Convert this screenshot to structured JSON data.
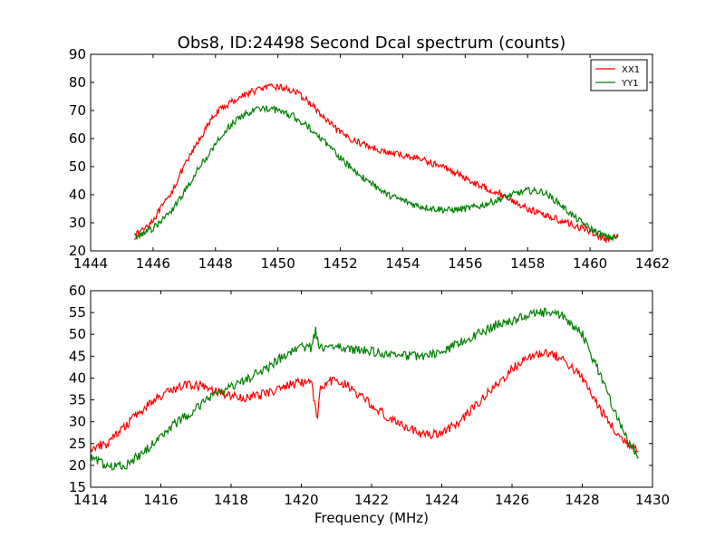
{
  "figure": {
    "title": "Obs8, ID:24498 Second Dcal spectrum (counts)",
    "xlabel": "Frequency (MHz)"
  },
  "colors": {
    "XX1": "#ff0000",
    "YY1": "#008000"
  },
  "chart_data": [
    {
      "type": "line",
      "title": "Obs8, ID:24498 Second Dcal spectrum (counts)",
      "xlabel": "",
      "ylabel": "",
      "xlim": [
        1444,
        1462
      ],
      "ylim": [
        20,
        90
      ],
      "xticks": [
        1444,
        1446,
        1448,
        1450,
        1452,
        1454,
        1456,
        1458,
        1460,
        1462
      ],
      "yticks": [
        20,
        30,
        40,
        50,
        60,
        70,
        80,
        90
      ],
      "grid": false,
      "legend": "top-right",
      "noise_amplitude": 1.2,
      "series": [
        {
          "name": "XX1",
          "color": "#ff0000",
          "points": [
            [
              1445.4,
              25
            ],
            [
              1446,
              31
            ],
            [
              1446.5,
              39
            ],
            [
              1447,
              50
            ],
            [
              1447.5,
              60
            ],
            [
              1448,
              69
            ],
            [
              1448.5,
              73
            ],
            [
              1449,
              76
            ],
            [
              1449.5,
              78
            ],
            [
              1450,
              78.5
            ],
            [
              1450.5,
              77
            ],
            [
              1451,
              73
            ],
            [
              1451.5,
              67
            ],
            [
              1452,
              62
            ],
            [
              1452.5,
              59
            ],
            [
              1453,
              57
            ],
            [
              1453.5,
              55
            ],
            [
              1454,
              54
            ],
            [
              1454.5,
              53
            ],
            [
              1455,
              51
            ],
            [
              1455.5,
              49
            ],
            [
              1456,
              46
            ],
            [
              1456.5,
              43
            ],
            [
              1457,
              41
            ],
            [
              1457.5,
              38
            ],
            [
              1458,
              35
            ],
            [
              1458.5,
              33
            ],
            [
              1459,
              31
            ],
            [
              1459.5,
              29
            ],
            [
              1460,
              27
            ],
            [
              1460.5,
              24
            ],
            [
              1460.9,
              25
            ]
          ]
        },
        {
          "name": "YY1",
          "color": "#008000",
          "points": [
            [
              1445.4,
              25
            ],
            [
              1446,
              28
            ],
            [
              1446.5,
              33
            ],
            [
              1447,
              41
            ],
            [
              1447.5,
              50
            ],
            [
              1448,
              58
            ],
            [
              1448.5,
              65
            ],
            [
              1449,
              69
            ],
            [
              1449.5,
              71
            ],
            [
              1450,
              70
            ],
            [
              1450.5,
              68
            ],
            [
              1451,
              64
            ],
            [
              1451.5,
              59
            ],
            [
              1452,
              53
            ],
            [
              1452.5,
              48
            ],
            [
              1453,
              44
            ],
            [
              1453.5,
              40
            ],
            [
              1454,
              38
            ],
            [
              1454.5,
              36
            ],
            [
              1455,
              35
            ],
            [
              1455.5,
              34.5
            ],
            [
              1456,
              35
            ],
            [
              1456.5,
              36
            ],
            [
              1457,
              38
            ],
            [
              1457.5,
              40
            ],
            [
              1458,
              41.5
            ],
            [
              1458.5,
              41
            ],
            [
              1459,
              37
            ],
            [
              1459.5,
              32
            ],
            [
              1460,
              28
            ],
            [
              1460.5,
              25
            ],
            [
              1460.9,
              24.5
            ]
          ]
        }
      ]
    },
    {
      "type": "line",
      "title": "",
      "xlabel": "Frequency (MHz)",
      "ylabel": "",
      "xlim": [
        1414,
        1430
      ],
      "ylim": [
        15,
        60
      ],
      "xticks": [
        1414,
        1416,
        1418,
        1420,
        1422,
        1424,
        1426,
        1428,
        1430
      ],
      "yticks": [
        15,
        20,
        25,
        30,
        35,
        40,
        45,
        50,
        55,
        60
      ],
      "grid": false,
      "legend": "none",
      "noise_amplitude": 1.1,
      "series": [
        {
          "name": "XX1",
          "color": "#ff0000",
          "points": [
            [
              1414,
              24
            ],
            [
              1414.5,
              25
            ],
            [
              1415,
              29
            ],
            [
              1415.5,
              33
            ],
            [
              1416,
              36
            ],
            [
              1416.5,
              38
            ],
            [
              1417,
              38.5
            ],
            [
              1417.5,
              37
            ],
            [
              1418,
              36
            ],
            [
              1418.5,
              35.5
            ],
            [
              1419,
              36.5
            ],
            [
              1419.5,
              38
            ],
            [
              1420,
              39
            ],
            [
              1420.3,
              38.5
            ],
            [
              1420.45,
              30
            ],
            [
              1420.55,
              38
            ],
            [
              1421,
              40
            ],
            [
              1421.5,
              37
            ],
            [
              1422,
              34
            ],
            [
              1422.5,
              31
            ],
            [
              1423,
              28.5
            ],
            [
              1423.5,
              27
            ],
            [
              1424,
              27.5
            ],
            [
              1424.5,
              30
            ],
            [
              1425,
              34
            ],
            [
              1425.5,
              38
            ],
            [
              1426,
              42
            ],
            [
              1426.5,
              45
            ],
            [
              1427,
              46
            ],
            [
              1427.5,
              44
            ],
            [
              1428,
              40
            ],
            [
              1428.5,
              33
            ],
            [
              1429,
              27
            ],
            [
              1429.3,
              25
            ],
            [
              1429.6,
              24
            ]
          ]
        },
        {
          "name": "YY1",
          "color": "#008000",
          "points": [
            [
              1414,
              21.5
            ],
            [
              1414.5,
              20
            ],
            [
              1415,
              20
            ],
            [
              1415.5,
              23
            ],
            [
              1416,
              27
            ],
            [
              1416.5,
              30
            ],
            [
              1417,
              33
            ],
            [
              1417.5,
              36
            ],
            [
              1418,
              38
            ],
            [
              1418.5,
              40
            ],
            [
              1419,
              42
            ],
            [
              1419.5,
              45
            ],
            [
              1420,
              47
            ],
            [
              1420.3,
              47
            ],
            [
              1420.4,
              51
            ],
            [
              1420.5,
              47
            ],
            [
              1421,
              47
            ],
            [
              1421.5,
              46.5
            ],
            [
              1422,
              46
            ],
            [
              1422.5,
              45.5
            ],
            [
              1423,
              45
            ],
            [
              1423.5,
              45
            ],
            [
              1424,
              46
            ],
            [
              1424.5,
              48
            ],
            [
              1425,
              50
            ],
            [
              1425.5,
              52
            ],
            [
              1426,
              53
            ],
            [
              1426.5,
              54.5
            ],
            [
              1427,
              55
            ],
            [
              1427.5,
              54
            ],
            [
              1428,
              50
            ],
            [
              1428.5,
              41
            ],
            [
              1429,
              31
            ],
            [
              1429.3,
              26
            ],
            [
              1429.6,
              22
            ]
          ]
        }
      ]
    }
  ]
}
